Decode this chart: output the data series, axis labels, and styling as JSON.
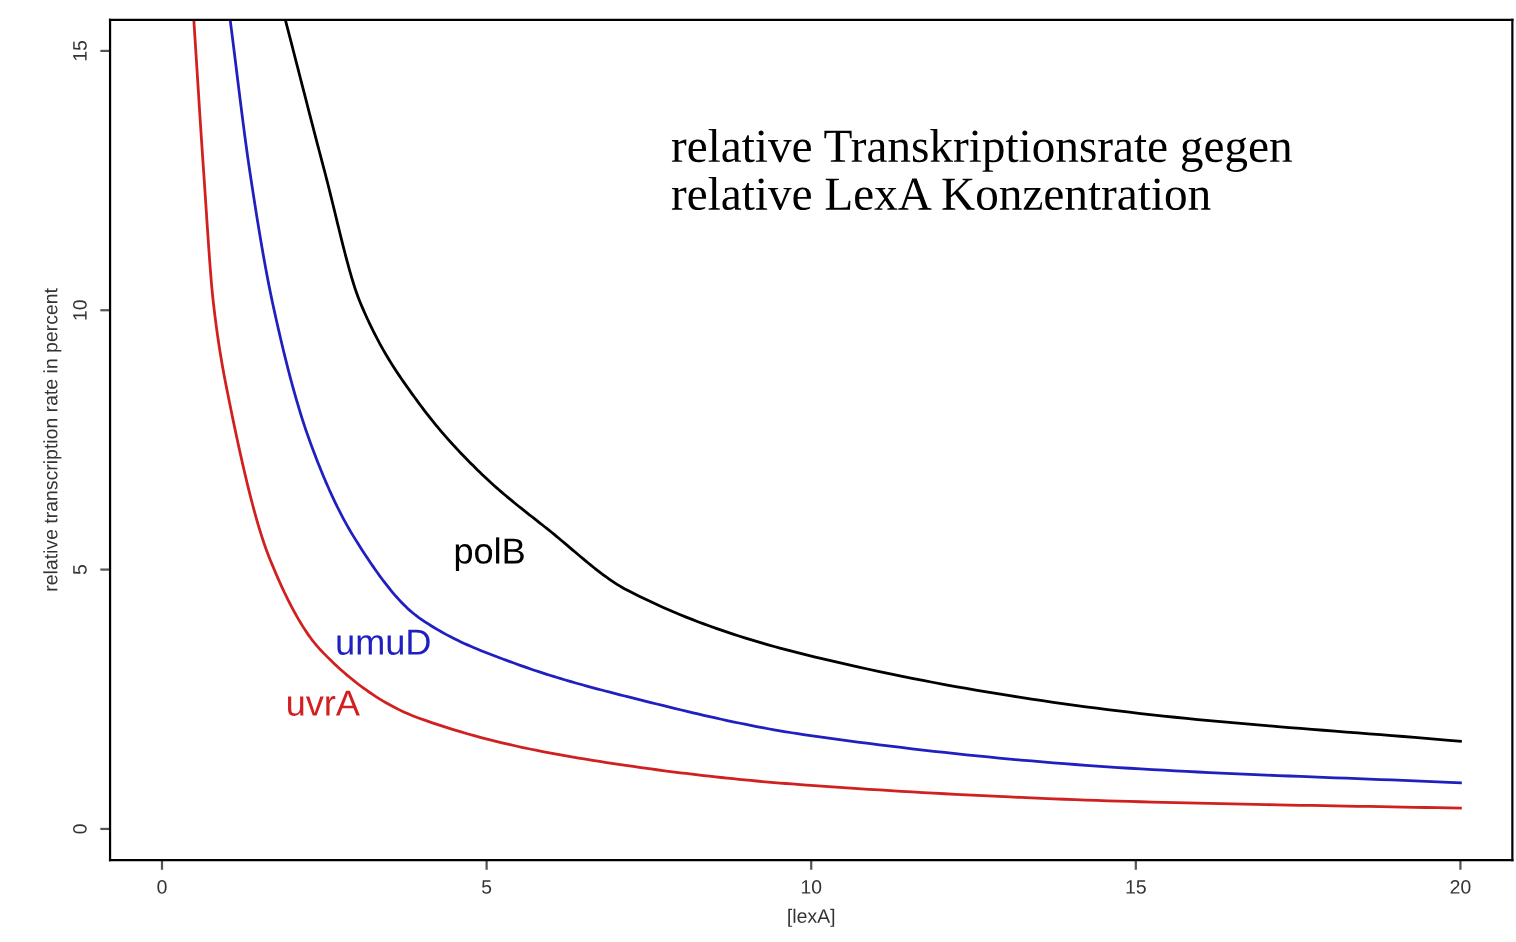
{
  "chart_data": {
    "type": "line",
    "title": "relative Transkriptionsrate gegen\nrelative LexA Konzentration",
    "xlabel": "[lexA]",
    "ylabel": "relative transcription rate in percent",
    "xlim": [
      -0.8,
      20.8
    ],
    "ylim": [
      -0.6,
      15.6
    ],
    "xticks": [
      0,
      5,
      10,
      15,
      20
    ],
    "yticks": [
      0,
      5,
      10,
      15
    ],
    "grid": false,
    "legend": false,
    "series": [
      {
        "name": "polB",
        "color": "#000000",
        "x": [
          1.9,
          2.5,
          3.05,
          3.95,
          4.96,
          5.96,
          7.17,
          9.88,
          14.9,
          20
        ],
        "values": [
          15.6,
          12.7,
          10.16,
          8.22,
          6.8,
          5.76,
          4.6,
          3.37,
          2.25,
          1.69
        ]
      },
      {
        "name": "umuD",
        "color": "#2020c0",
        "x": [
          1.05,
          1.35,
          1.7,
          2.25,
          2.95,
          3.95,
          5.46,
          7.17,
          9.88,
          14.9,
          20
        ],
        "values": [
          15.6,
          12.7,
          10.16,
          7.57,
          5.64,
          4.08,
          3.18,
          2.55,
          1.82,
          1.17,
          0.89
        ]
      },
      {
        "name": "uvrA",
        "color": "#d02020",
        "x": [
          0.49,
          0.64,
          0.79,
          1.04,
          1.65,
          2.45,
          3.95,
          7.17,
          9.88,
          14.9,
          20
        ],
        "values": [
          15.6,
          12.7,
          10.16,
          8.22,
          5.24,
          3.44,
          2.14,
          1.22,
          0.85,
          0.53,
          0.4
        ]
      }
    ]
  }
}
